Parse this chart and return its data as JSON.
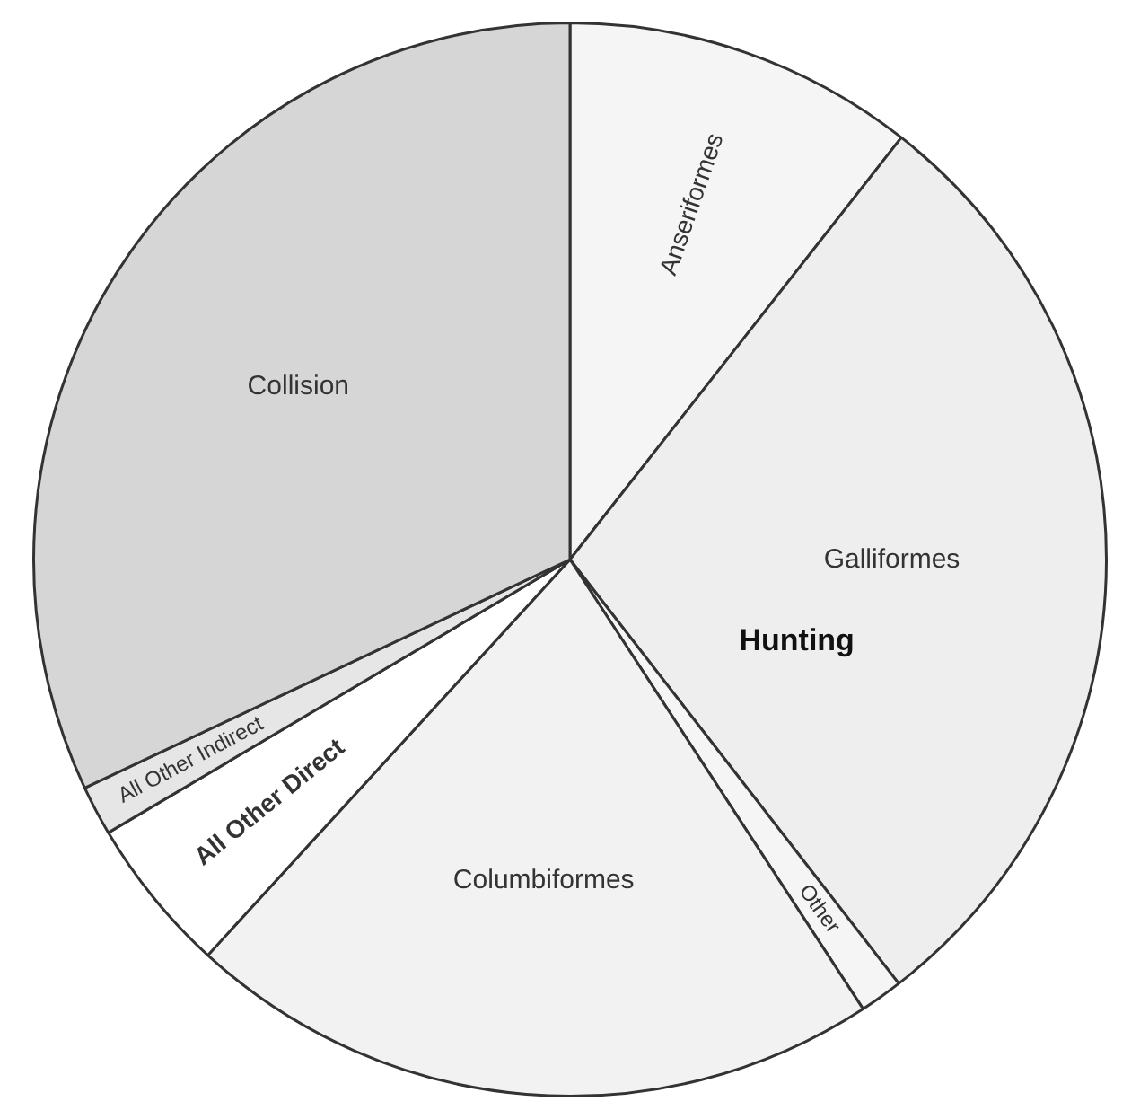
{
  "chart_data": {
    "type": "pie",
    "categories": [
      "Anseriformes",
      "Galliformes",
      "Other",
      "Columbiformes",
      "All Other Direct",
      "All Other Indirect",
      "Collision"
    ],
    "values": [
      10.6,
      28.9,
      1.3,
      21.0,
      4.7,
      1.5,
      32.0
    ],
    "colors": [
      "#f5f5f5",
      "#eeeeee",
      "#f5f5f5",
      "#f2f2f2",
      "#ffffff",
      "#e6e6e6",
      "#d6d6d6"
    ],
    "annotations": [
      "Hunting"
    ],
    "legend": false
  }
}
